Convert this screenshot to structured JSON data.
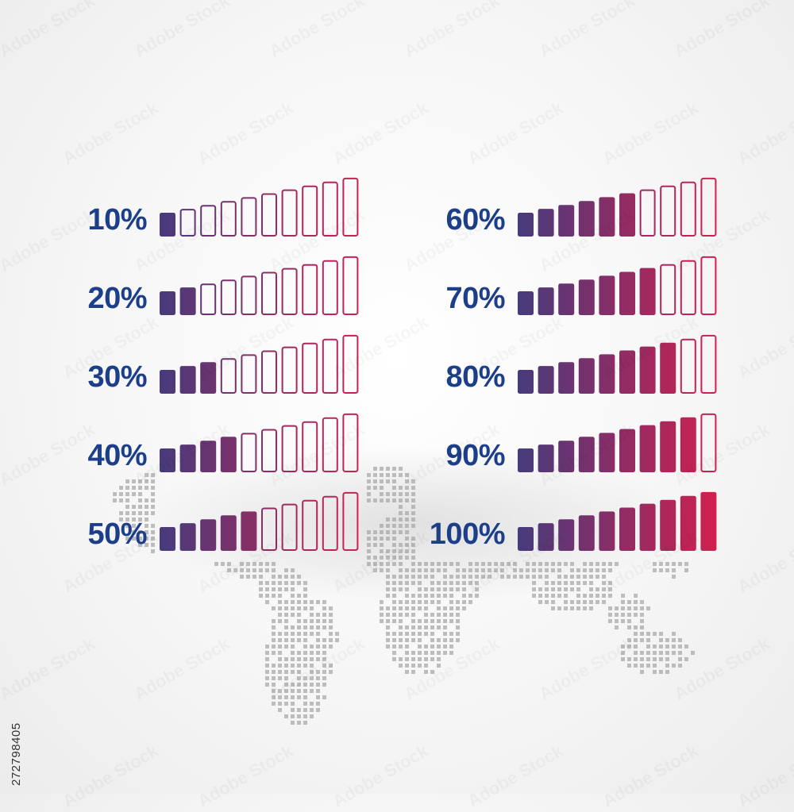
{
  "colors": {
    "label": "#1d3f8a",
    "gradient_start": "#463b7c",
    "gradient_end": "#d1204f",
    "map_dot": "#a9a9a9"
  },
  "meters": [
    {
      "label": "10%",
      "value": 10
    },
    {
      "label": "20%",
      "value": 20
    },
    {
      "label": "30%",
      "value": 30
    },
    {
      "label": "40%",
      "value": 40
    },
    {
      "label": "50%",
      "value": 50
    },
    {
      "label": "60%",
      "value": 60
    },
    {
      "label": "70%",
      "value": 70
    },
    {
      "label": "80%",
      "value": 80
    },
    {
      "label": "90%",
      "value": 90
    },
    {
      "label": "100%",
      "value": 100
    }
  ],
  "segments_per_meter": 10,
  "background_image": "world-map-dotted",
  "stock_id": "272798405",
  "watermark_text": "Adobe Stock"
}
